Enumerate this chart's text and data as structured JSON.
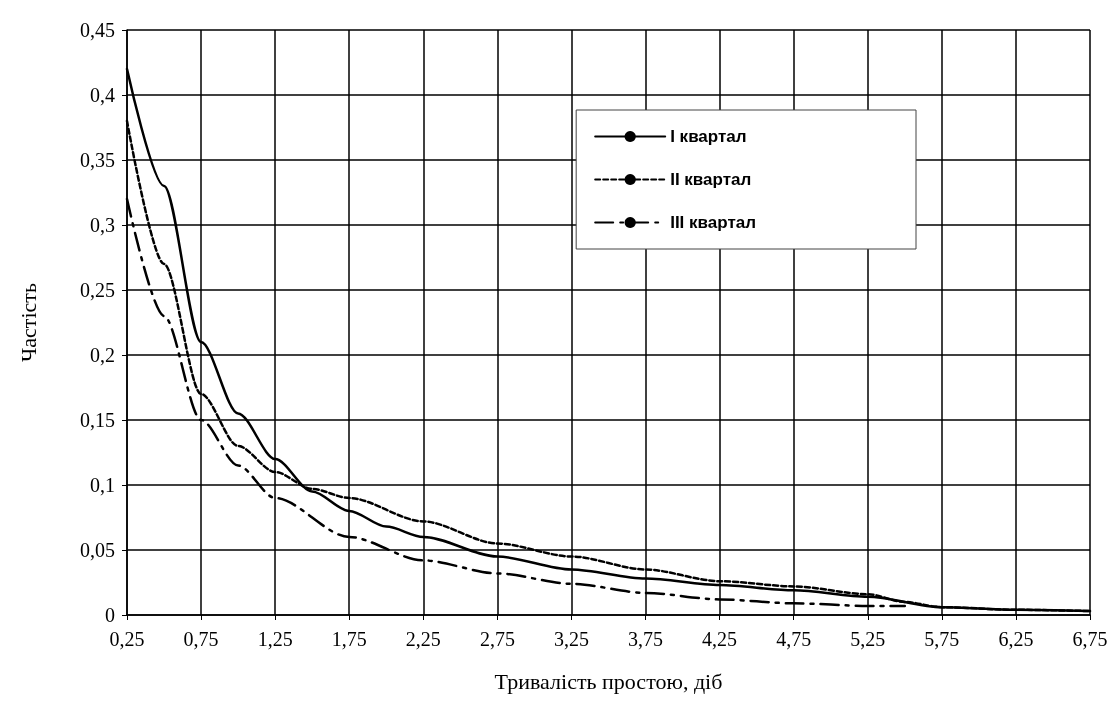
{
  "chart_data": {
    "type": "line",
    "xlabel": "Тривалість простою, діб",
    "ylabel": "Частість",
    "xlim": [
      0.25,
      6.75
    ],
    "xticks": [
      {
        "value": 0.25,
        "label": "0,25"
      },
      {
        "value": 0.75,
        "label": "0,75"
      },
      {
        "value": 1.25,
        "label": "1,25"
      },
      {
        "value": 1.75,
        "label": "1,75"
      },
      {
        "value": 2.25,
        "label": "2,25"
      },
      {
        "value": 2.75,
        "label": "2,75"
      },
      {
        "value": 3.25,
        "label": "3,25"
      },
      {
        "value": 3.75,
        "label": "3,75"
      },
      {
        "value": 4.25,
        "label": "4,25"
      },
      {
        "value": 4.75,
        "label": "4,75"
      },
      {
        "value": 5.25,
        "label": "5,25"
      },
      {
        "value": 5.75,
        "label": "5,75"
      },
      {
        "value": 6.25,
        "label": "6,25"
      },
      {
        "value": 6.75,
        "label": "6,75"
      }
    ],
    "ylim": [
      0,
      0.45
    ],
    "yticks": [
      0,
      {
        "value": 0.05,
        "label": "0,05"
      },
      {
        "value": 0.1,
        "label": "0,1"
      },
      {
        "value": 0.15,
        "label": "0,15"
      },
      {
        "value": 0.2,
        "label": "0,2"
      },
      {
        "value": 0.25,
        "label": "0,25"
      },
      {
        "value": 0.3,
        "label": "0,3"
      },
      {
        "value": 0.35,
        "label": "0,35"
      },
      {
        "value": 0.4,
        "label": "0,4"
      },
      {
        "value": 0.45,
        "label": "0,45"
      }
    ],
    "grid": true,
    "legend": "top right",
    "marker": "none",
    "series": [
      {
        "name": "I квартал",
        "color": "#000000",
        "line_style": "solid",
        "x": [
          0.25,
          0.5,
          0.75,
          1.0,
          1.25,
          1.5,
          1.75,
          2.0,
          2.25,
          2.75,
          3.25,
          3.75,
          4.25,
          4.75,
          5.25,
          5.75,
          6.25,
          6.75
        ],
        "values": [
          0.42,
          0.33,
          0.21,
          0.155,
          0.12,
          0.095,
          0.08,
          0.068,
          0.06,
          0.045,
          0.035,
          0.028,
          0.023,
          0.019,
          0.014,
          0.006,
          0.004,
          0.003
        ]
      },
      {
        "name": "II квартал",
        "color": "#000000",
        "line_style": "dotted",
        "x": [
          0.25,
          0.5,
          0.75,
          1.0,
          1.25,
          1.5,
          1.75,
          2.25,
          2.75,
          3.25,
          3.75,
          4.25,
          4.75,
          5.25,
          5.5,
          5.75,
          6.25,
          6.75
        ],
        "values": [
          0.38,
          0.27,
          0.17,
          0.13,
          0.11,
          0.097,
          0.09,
          0.072,
          0.055,
          0.045,
          0.035,
          0.026,
          0.022,
          0.016,
          0.01,
          0.006,
          0.004,
          0.003
        ]
      },
      {
        "name": "III квартал",
        "color": "#000000",
        "line_style": "dashed",
        "x": [
          0.25,
          0.5,
          0.75,
          1.0,
          1.25,
          1.75,
          2.25,
          2.75,
          3.25,
          3.75,
          4.25,
          4.75,
          5.25,
          5.5
        ],
        "values": [
          0.32,
          0.23,
          0.15,
          0.115,
          0.09,
          0.06,
          0.042,
          0.032,
          0.024,
          0.017,
          0.012,
          0.009,
          0.007,
          0.007
        ]
      }
    ]
  }
}
